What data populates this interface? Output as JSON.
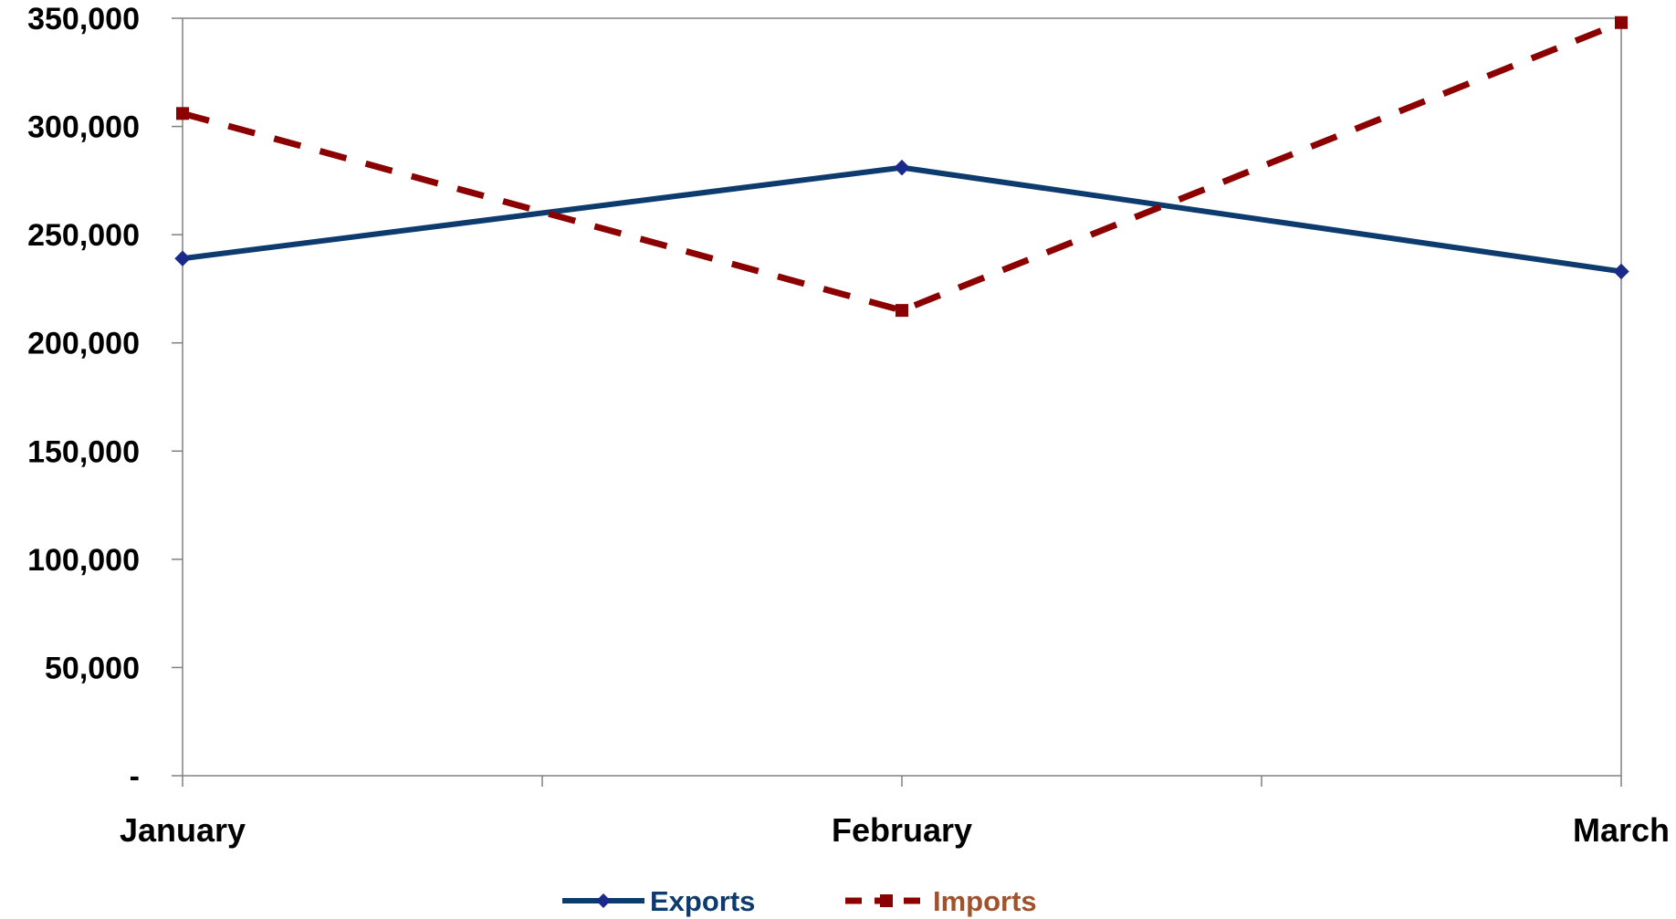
{
  "chart_data": {
    "type": "line",
    "categories": [
      "January",
      "February",
      "March"
    ],
    "y_tick_labels": [
      "-",
      "50,000",
      "100,000",
      "150,000",
      "200,000",
      "250,000",
      "300,000",
      "350,000"
    ],
    "ylim": [
      0,
      350000
    ],
    "y_step": 50000,
    "grid": false,
    "legend_position": "bottom",
    "series": [
      {
        "name": "Exports",
        "values": [
          239000,
          281000,
          233000
        ],
        "color": "#0d3b6e",
        "line_style": "solid",
        "marker": "diamond"
      },
      {
        "name": "Imports",
        "values": [
          306000,
          215000,
          348000
        ],
        "color": "#8b0000",
        "line_style": "dashed",
        "marker": "square",
        "label_color": "#a0522d"
      }
    ]
  }
}
